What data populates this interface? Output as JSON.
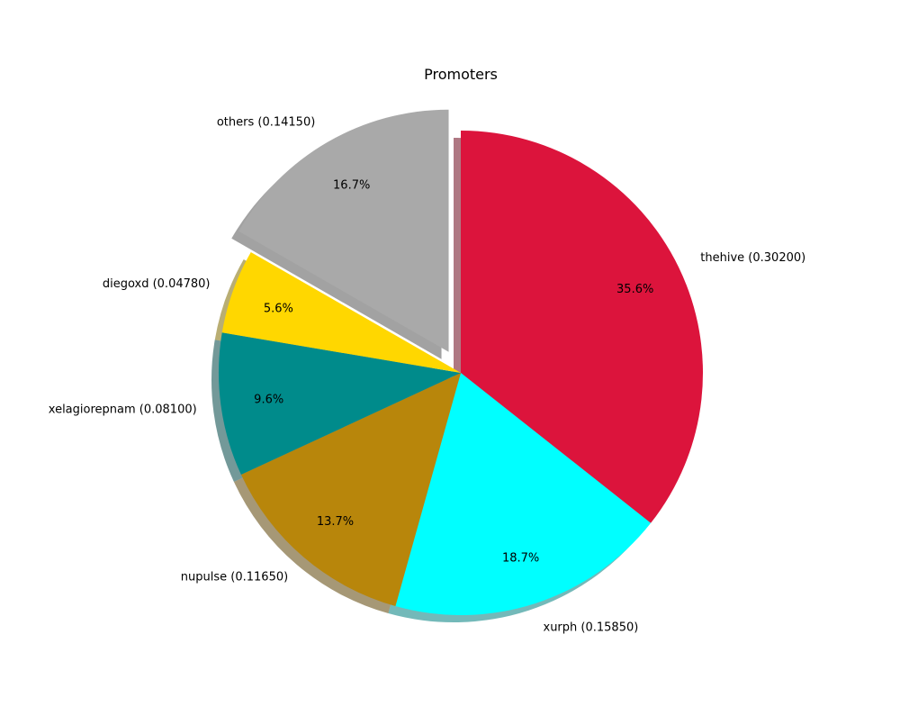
{
  "chart_data": {
    "type": "pie",
    "title": "Promoters",
    "start_angle_deg": 90,
    "direction": "clockwise",
    "shadow": true,
    "slices": [
      {
        "name": "thehive",
        "label": "thehive (0.30200)",
        "value": 0.302,
        "pct_label": "35.6%",
        "color": "#DC143C",
        "explode": false
      },
      {
        "name": "xurph",
        "label": "xurph (0.15850)",
        "value": 0.1585,
        "pct_label": "18.7%",
        "color": "#00FFFF",
        "explode": false
      },
      {
        "name": "nupulse",
        "label": "nupulse (0.11650)",
        "value": 0.1165,
        "pct_label": "13.7%",
        "color": "#B8860B",
        "explode": false
      },
      {
        "name": "xelagiorepnam",
        "label": "xelagiorepnam (0.08100)",
        "value": 0.081,
        "pct_label": "9.6%",
        "color": "#008B8B",
        "explode": false
      },
      {
        "name": "diegoxd",
        "label": "diegoxd (0.04780)",
        "value": 0.0478,
        "pct_label": "5.6%",
        "color": "#FFD700",
        "explode": false
      },
      {
        "name": "others",
        "label": "others (0.14150)",
        "value": 0.1415,
        "pct_label": "16.7%",
        "color": "#A9A9A9",
        "explode": true
      }
    ]
  }
}
